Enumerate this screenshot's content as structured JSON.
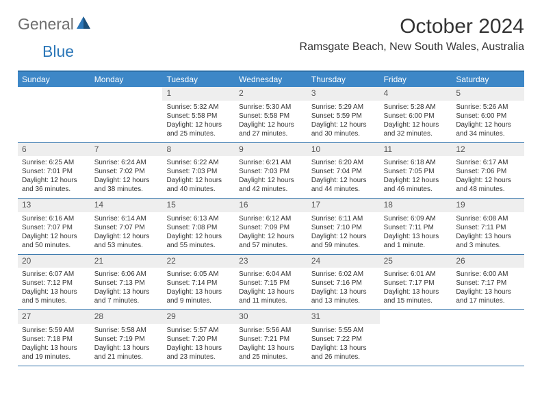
{
  "logo": {
    "text1": "General",
    "text2": "Blue"
  },
  "title": "October 2024",
  "location": "Ramsgate Beach, New South Wales, Australia",
  "colors": {
    "header_bg": "#3d87c7",
    "border": "#2c6fa8",
    "daynum_bg": "#eeeeee",
    "text": "#333333",
    "logo_gray": "#6e6e6e",
    "logo_blue": "#2c77b8"
  },
  "weekdays": [
    "Sunday",
    "Monday",
    "Tuesday",
    "Wednesday",
    "Thursday",
    "Friday",
    "Saturday"
  ],
  "weeks": [
    [
      null,
      null,
      {
        "n": "1",
        "sr": "Sunrise: 5:32 AM",
        "ss": "Sunset: 5:58 PM",
        "d1": "Daylight: 12 hours",
        "d2": "and 25 minutes."
      },
      {
        "n": "2",
        "sr": "Sunrise: 5:30 AM",
        "ss": "Sunset: 5:58 PM",
        "d1": "Daylight: 12 hours",
        "d2": "and 27 minutes."
      },
      {
        "n": "3",
        "sr": "Sunrise: 5:29 AM",
        "ss": "Sunset: 5:59 PM",
        "d1": "Daylight: 12 hours",
        "d2": "and 30 minutes."
      },
      {
        "n": "4",
        "sr": "Sunrise: 5:28 AM",
        "ss": "Sunset: 6:00 PM",
        "d1": "Daylight: 12 hours",
        "d2": "and 32 minutes."
      },
      {
        "n": "5",
        "sr": "Sunrise: 5:26 AM",
        "ss": "Sunset: 6:00 PM",
        "d1": "Daylight: 12 hours",
        "d2": "and 34 minutes."
      }
    ],
    [
      {
        "n": "6",
        "sr": "Sunrise: 6:25 AM",
        "ss": "Sunset: 7:01 PM",
        "d1": "Daylight: 12 hours",
        "d2": "and 36 minutes."
      },
      {
        "n": "7",
        "sr": "Sunrise: 6:24 AM",
        "ss": "Sunset: 7:02 PM",
        "d1": "Daylight: 12 hours",
        "d2": "and 38 minutes."
      },
      {
        "n": "8",
        "sr": "Sunrise: 6:22 AM",
        "ss": "Sunset: 7:03 PM",
        "d1": "Daylight: 12 hours",
        "d2": "and 40 minutes."
      },
      {
        "n": "9",
        "sr": "Sunrise: 6:21 AM",
        "ss": "Sunset: 7:03 PM",
        "d1": "Daylight: 12 hours",
        "d2": "and 42 minutes."
      },
      {
        "n": "10",
        "sr": "Sunrise: 6:20 AM",
        "ss": "Sunset: 7:04 PM",
        "d1": "Daylight: 12 hours",
        "d2": "and 44 minutes."
      },
      {
        "n": "11",
        "sr": "Sunrise: 6:18 AM",
        "ss": "Sunset: 7:05 PM",
        "d1": "Daylight: 12 hours",
        "d2": "and 46 minutes."
      },
      {
        "n": "12",
        "sr": "Sunrise: 6:17 AM",
        "ss": "Sunset: 7:06 PM",
        "d1": "Daylight: 12 hours",
        "d2": "and 48 minutes."
      }
    ],
    [
      {
        "n": "13",
        "sr": "Sunrise: 6:16 AM",
        "ss": "Sunset: 7:07 PM",
        "d1": "Daylight: 12 hours",
        "d2": "and 50 minutes."
      },
      {
        "n": "14",
        "sr": "Sunrise: 6:14 AM",
        "ss": "Sunset: 7:07 PM",
        "d1": "Daylight: 12 hours",
        "d2": "and 53 minutes."
      },
      {
        "n": "15",
        "sr": "Sunrise: 6:13 AM",
        "ss": "Sunset: 7:08 PM",
        "d1": "Daylight: 12 hours",
        "d2": "and 55 minutes."
      },
      {
        "n": "16",
        "sr": "Sunrise: 6:12 AM",
        "ss": "Sunset: 7:09 PM",
        "d1": "Daylight: 12 hours",
        "d2": "and 57 minutes."
      },
      {
        "n": "17",
        "sr": "Sunrise: 6:11 AM",
        "ss": "Sunset: 7:10 PM",
        "d1": "Daylight: 12 hours",
        "d2": "and 59 minutes."
      },
      {
        "n": "18",
        "sr": "Sunrise: 6:09 AM",
        "ss": "Sunset: 7:11 PM",
        "d1": "Daylight: 13 hours",
        "d2": "and 1 minute."
      },
      {
        "n": "19",
        "sr": "Sunrise: 6:08 AM",
        "ss": "Sunset: 7:11 PM",
        "d1": "Daylight: 13 hours",
        "d2": "and 3 minutes."
      }
    ],
    [
      {
        "n": "20",
        "sr": "Sunrise: 6:07 AM",
        "ss": "Sunset: 7:12 PM",
        "d1": "Daylight: 13 hours",
        "d2": "and 5 minutes."
      },
      {
        "n": "21",
        "sr": "Sunrise: 6:06 AM",
        "ss": "Sunset: 7:13 PM",
        "d1": "Daylight: 13 hours",
        "d2": "and 7 minutes."
      },
      {
        "n": "22",
        "sr": "Sunrise: 6:05 AM",
        "ss": "Sunset: 7:14 PM",
        "d1": "Daylight: 13 hours",
        "d2": "and 9 minutes."
      },
      {
        "n": "23",
        "sr": "Sunrise: 6:04 AM",
        "ss": "Sunset: 7:15 PM",
        "d1": "Daylight: 13 hours",
        "d2": "and 11 minutes."
      },
      {
        "n": "24",
        "sr": "Sunrise: 6:02 AM",
        "ss": "Sunset: 7:16 PM",
        "d1": "Daylight: 13 hours",
        "d2": "and 13 minutes."
      },
      {
        "n": "25",
        "sr": "Sunrise: 6:01 AM",
        "ss": "Sunset: 7:17 PM",
        "d1": "Daylight: 13 hours",
        "d2": "and 15 minutes."
      },
      {
        "n": "26",
        "sr": "Sunrise: 6:00 AM",
        "ss": "Sunset: 7:17 PM",
        "d1": "Daylight: 13 hours",
        "d2": "and 17 minutes."
      }
    ],
    [
      {
        "n": "27",
        "sr": "Sunrise: 5:59 AM",
        "ss": "Sunset: 7:18 PM",
        "d1": "Daylight: 13 hours",
        "d2": "and 19 minutes."
      },
      {
        "n": "28",
        "sr": "Sunrise: 5:58 AM",
        "ss": "Sunset: 7:19 PM",
        "d1": "Daylight: 13 hours",
        "d2": "and 21 minutes."
      },
      {
        "n": "29",
        "sr": "Sunrise: 5:57 AM",
        "ss": "Sunset: 7:20 PM",
        "d1": "Daylight: 13 hours",
        "d2": "and 23 minutes."
      },
      {
        "n": "30",
        "sr": "Sunrise: 5:56 AM",
        "ss": "Sunset: 7:21 PM",
        "d1": "Daylight: 13 hours",
        "d2": "and 25 minutes."
      },
      {
        "n": "31",
        "sr": "Sunrise: 5:55 AM",
        "ss": "Sunset: 7:22 PM",
        "d1": "Daylight: 13 hours",
        "d2": "and 26 minutes."
      },
      null,
      null
    ]
  ]
}
